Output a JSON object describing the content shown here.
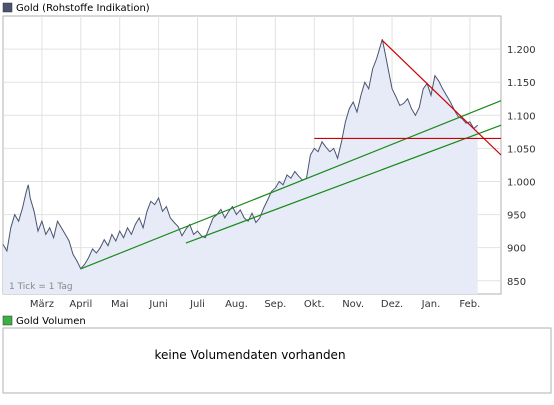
{
  "legend": {
    "price_label": "Gold (Rohstoffe Indikation)",
    "volume_label": "Gold Volumen",
    "price_color": "#4a5470",
    "volume_color": "#3cb043"
  },
  "tick_note": "1 Tick = 1 Tag",
  "no_volume_text": "keine Volumendaten vorhanden",
  "chart_data": {
    "type": "line",
    "title": "Gold (Rohstoffe Indikation)",
    "xlabel": "",
    "ylabel": "",
    "ylim": [
      830,
      1250
    ],
    "y_ticks": [
      "850",
      "900",
      "950",
      "1.000",
      "1.050",
      "1.100",
      "1.150",
      "1.200"
    ],
    "y_tick_values": [
      850,
      900,
      950,
      1000,
      1050,
      1100,
      1150,
      1200
    ],
    "x_tick_labels": [
      "März",
      "April",
      "Mai",
      "Juni",
      "Juli",
      "Aug.",
      "Sep.",
      "Okt.",
      "Nov.",
      "Dez.",
      "Jan.",
      "Feb."
    ],
    "x_tick_positions": [
      0.5,
      1.5,
      2.5,
      3.5,
      4.5,
      5.5,
      6.5,
      7.5,
      8.5,
      9.5,
      10.5,
      11.5
    ],
    "x_range": [
      -0.5,
      12.3
    ],
    "grid": true,
    "series": [
      {
        "name": "Gold (Rohstoffe Indikation)",
        "color": "#4a5470",
        "fill": "#e6ebf7",
        "points": [
          [
            -0.5,
            905
          ],
          [
            -0.4,
            895
          ],
          [
            -0.3,
            930
          ],
          [
            -0.2,
            950
          ],
          [
            -0.1,
            940
          ],
          [
            0.0,
            960
          ],
          [
            0.1,
            985
          ],
          [
            0.15,
            995
          ],
          [
            0.2,
            975
          ],
          [
            0.3,
            955
          ],
          [
            0.4,
            925
          ],
          [
            0.5,
            940
          ],
          [
            0.6,
            920
          ],
          [
            0.7,
            930
          ],
          [
            0.8,
            915
          ],
          [
            0.9,
            940
          ],
          [
            1.0,
            930
          ],
          [
            1.1,
            920
          ],
          [
            1.2,
            910
          ],
          [
            1.3,
            890
          ],
          [
            1.4,
            880
          ],
          [
            1.5,
            868
          ],
          [
            1.6,
            875
          ],
          [
            1.7,
            885
          ],
          [
            1.8,
            898
          ],
          [
            1.9,
            892
          ],
          [
            2.0,
            900
          ],
          [
            2.1,
            912
          ],
          [
            2.2,
            903
          ],
          [
            2.3,
            920
          ],
          [
            2.4,
            910
          ],
          [
            2.5,
            925
          ],
          [
            2.6,
            915
          ],
          [
            2.7,
            930
          ],
          [
            2.8,
            920
          ],
          [
            2.9,
            935
          ],
          [
            3.0,
            945
          ],
          [
            3.1,
            930
          ],
          [
            3.2,
            955
          ],
          [
            3.3,
            970
          ],
          [
            3.4,
            965
          ],
          [
            3.5,
            975
          ],
          [
            3.6,
            955
          ],
          [
            3.7,
            962
          ],
          [
            3.8,
            945
          ],
          [
            3.9,
            938
          ],
          [
            4.0,
            932
          ],
          [
            4.1,
            918
          ],
          [
            4.2,
            928
          ],
          [
            4.3,
            935
          ],
          [
            4.4,
            920
          ],
          [
            4.5,
            925
          ],
          [
            4.6,
            918
          ],
          [
            4.7,
            915
          ],
          [
            4.8,
            930
          ],
          [
            4.9,
            945
          ],
          [
            5.0,
            950
          ],
          [
            5.1,
            958
          ],
          [
            5.2,
            945
          ],
          [
            5.3,
            955
          ],
          [
            5.4,
            962
          ],
          [
            5.5,
            950
          ],
          [
            5.6,
            957
          ],
          [
            5.7,
            945
          ],
          [
            5.8,
            940
          ],
          [
            5.9,
            952
          ],
          [
            6.0,
            938
          ],
          [
            6.1,
            945
          ],
          [
            6.2,
            960
          ],
          [
            6.3,
            972
          ],
          [
            6.4,
            985
          ],
          [
            6.5,
            990
          ],
          [
            6.6,
            1000
          ],
          [
            6.7,
            995
          ],
          [
            6.8,
            1010
          ],
          [
            6.9,
            1005
          ],
          [
            7.0,
            1015
          ],
          [
            7.1,
            1008
          ],
          [
            7.2,
            1002
          ],
          [
            7.3,
            1005
          ],
          [
            7.4,
            1040
          ],
          [
            7.5,
            1050
          ],
          [
            7.6,
            1045
          ],
          [
            7.7,
            1060
          ],
          [
            7.8,
            1052
          ],
          [
            7.9,
            1045
          ],
          [
            8.0,
            1050
          ],
          [
            8.1,
            1035
          ],
          [
            8.2,
            1060
          ],
          [
            8.3,
            1090
          ],
          [
            8.4,
            1110
          ],
          [
            8.5,
            1120
          ],
          [
            8.6,
            1105
          ],
          [
            8.7,
            1130
          ],
          [
            8.8,
            1150
          ],
          [
            8.9,
            1140
          ],
          [
            9.0,
            1170
          ],
          [
            9.1,
            1185
          ],
          [
            9.2,
            1205
          ],
          [
            9.25,
            1215
          ],
          [
            9.3,
            1200
          ],
          [
            9.4,
            1170
          ],
          [
            9.5,
            1140
          ],
          [
            9.6,
            1128
          ],
          [
            9.7,
            1115
          ],
          [
            9.8,
            1118
          ],
          [
            9.9,
            1125
          ],
          [
            10.0,
            1110
          ],
          [
            10.1,
            1100
          ],
          [
            10.2,
            1112
          ],
          [
            10.3,
            1140
          ],
          [
            10.4,
            1148
          ],
          [
            10.5,
            1130
          ],
          [
            10.6,
            1160
          ],
          [
            10.7,
            1152
          ],
          [
            10.8,
            1140
          ],
          [
            10.9,
            1130
          ],
          [
            11.0,
            1120
          ],
          [
            11.1,
            1108
          ],
          [
            11.2,
            1098
          ],
          [
            11.3,
            1095
          ],
          [
            11.4,
            1088
          ],
          [
            11.5,
            1090
          ],
          [
            11.6,
            1080
          ],
          [
            11.7,
            1085
          ]
        ]
      }
    ],
    "trendlines": [
      {
        "color": "#1a8a1a",
        "points": [
          [
            1.5,
            868
          ],
          [
            12.3,
            1122
          ]
        ]
      },
      {
        "color": "#1a8a1a",
        "points": [
          [
            4.2,
            907
          ],
          [
            12.3,
            1085
          ]
        ]
      },
      {
        "color": "#cc0000",
        "points": [
          [
            9.25,
            1213
          ],
          [
            12.3,
            1040
          ]
        ]
      },
      {
        "color": "#cc0000",
        "points": [
          [
            7.5,
            1065
          ],
          [
            12.3,
            1065
          ]
        ]
      }
    ]
  }
}
